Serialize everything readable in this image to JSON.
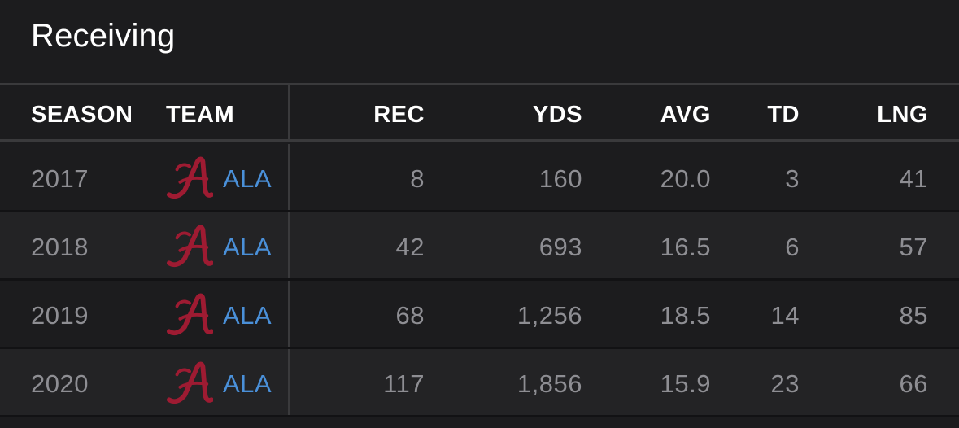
{
  "title": "Receiving",
  "columns": {
    "season": "SEASON",
    "team": "TEAM",
    "rec": "REC",
    "yds": "YDS",
    "avg": "AVG",
    "td": "TD",
    "lng": "LNG"
  },
  "rows": [
    {
      "season": "2017",
      "team": "ALA",
      "rec": "8",
      "yds": "160",
      "avg": "20.0",
      "td": "3",
      "lng": "41"
    },
    {
      "season": "2018",
      "team": "ALA",
      "rec": "42",
      "yds": "693",
      "avg": "16.5",
      "td": "6",
      "lng": "57"
    },
    {
      "season": "2019",
      "team": "ALA",
      "rec": "68",
      "yds": "1,256",
      "avg": "18.5",
      "td": "14",
      "lng": "85"
    },
    {
      "season": "2020",
      "team": "ALA",
      "rec": "117",
      "yds": "1,856",
      "avg": "15.9",
      "td": "23",
      "lng": "66"
    }
  ],
  "colors": {
    "background": "#1c1c1e",
    "row_alt": "#232325",
    "link": "#4a90d9",
    "logo": "#9e1b32",
    "muted_text": "#8e8e93"
  },
  "icons": {
    "team_logo": "alabama-script-a-logo-icon"
  }
}
